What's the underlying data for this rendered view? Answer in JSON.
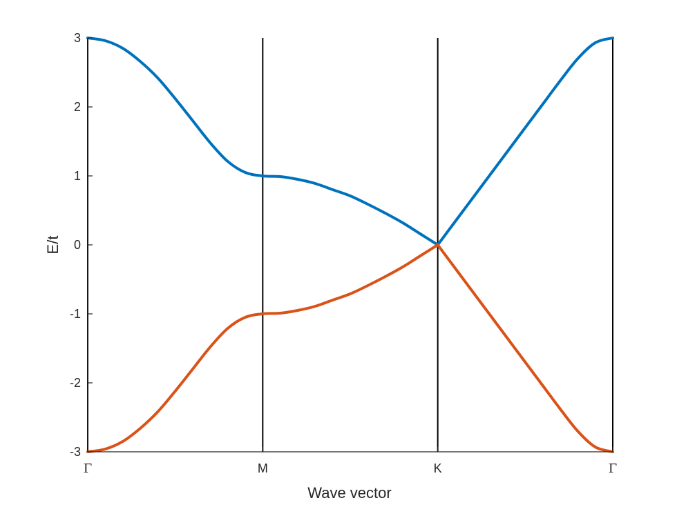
{
  "chart_data": {
    "type": "line",
    "title": "",
    "xlabel": "Wave vector",
    "ylabel": "E/t",
    "ylim": [
      -3,
      3
    ],
    "xlim": [
      0,
      3
    ],
    "x_ticks": [
      {
        "value": 0,
        "label": "Γ"
      },
      {
        "value": 1,
        "label": "M"
      },
      {
        "value": 2,
        "label": "K"
      },
      {
        "value": 3,
        "label": "Γ"
      }
    ],
    "y_ticks": [
      {
        "value": 3,
        "label": "3"
      },
      {
        "value": 2,
        "label": "2"
      },
      {
        "value": 1,
        "label": "1"
      },
      {
        "value": 0,
        "label": "0"
      },
      {
        "value": -1,
        "label": "-1"
      },
      {
        "value": -2,
        "label": "-2"
      },
      {
        "value": -3,
        "label": "-3"
      }
    ],
    "vertical_lines": [
      0,
      1,
      2,
      3
    ],
    "grid": false,
    "legend": false,
    "series": [
      {
        "color": "#0072BD",
        "x": [
          0,
          0.1,
          0.2,
          0.3,
          0.4,
          0.5,
          0.6,
          0.7,
          0.8,
          0.9,
          1.0,
          1.1,
          1.2,
          1.3,
          1.4,
          1.5,
          1.6,
          1.7,
          1.8,
          1.9,
          2.0,
          2.1,
          2.2,
          2.3,
          2.4,
          2.5,
          2.6,
          2.7,
          2.8,
          2.9,
          3.0
        ],
        "values": [
          3.0,
          2.96,
          2.85,
          2.66,
          2.42,
          2.12,
          1.8,
          1.48,
          1.21,
          1.05,
          1.0,
          0.99,
          0.95,
          0.89,
          0.8,
          0.71,
          0.59,
          0.46,
          0.32,
          0.16,
          0.0,
          0.34,
          0.68,
          1.02,
          1.36,
          1.7,
          2.04,
          2.38,
          2.7,
          2.93,
          3.0
        ]
      },
      {
        "color": "#D95319",
        "x": [
          0,
          0.1,
          0.2,
          0.3,
          0.4,
          0.5,
          0.6,
          0.7,
          0.8,
          0.9,
          1.0,
          1.1,
          1.2,
          1.3,
          1.4,
          1.5,
          1.6,
          1.7,
          1.8,
          1.9,
          2.0,
          2.1,
          2.2,
          2.3,
          2.4,
          2.5,
          2.6,
          2.7,
          2.8,
          2.9,
          3.0
        ],
        "values": [
          -3.0,
          -2.96,
          -2.85,
          -2.66,
          -2.42,
          -2.12,
          -1.8,
          -1.48,
          -1.21,
          -1.05,
          -1.0,
          -0.99,
          -0.95,
          -0.89,
          -0.8,
          -0.71,
          -0.59,
          -0.46,
          -0.32,
          -0.16,
          0.0,
          -0.34,
          -0.68,
          -1.02,
          -1.36,
          -1.7,
          -2.04,
          -2.38,
          -2.7,
          -2.93,
          -3.0
        ]
      }
    ]
  }
}
